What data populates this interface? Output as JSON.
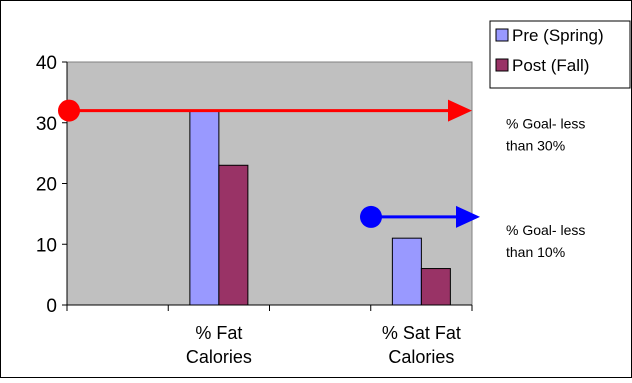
{
  "chart_data": {
    "type": "bar",
    "categories": [
      "% Fat Calories",
      "% Sat Fat Calories"
    ],
    "category_lines": [
      [
        "% Fat",
        "Calories"
      ],
      [
        "% Sat Fat",
        "Calories"
      ]
    ],
    "series": [
      {
        "name": "Pre (Spring)",
        "values": [
          32,
          11
        ],
        "color": "#9999ff"
      },
      {
        "name": "Post (Fall)",
        "values": [
          23,
          6
        ],
        "color": "#993366"
      }
    ],
    "ylim": [
      0,
      40
    ],
    "yticks": [
      0,
      10,
      20,
      30,
      40
    ],
    "grid": false,
    "plot_background": "#c0c0c0",
    "legend_position": "top-right",
    "annotations": [
      {
        "name": "fat-goal",
        "y": 32,
        "color": "#ff0000",
        "lines": [
          "% Goal- less",
          "than 30%"
        ]
      },
      {
        "name": "sat-fat-goal",
        "y": 14.5,
        "color": "#0000ff",
        "lines": [
          "% Goal- less",
          "than 10%"
        ]
      }
    ]
  }
}
